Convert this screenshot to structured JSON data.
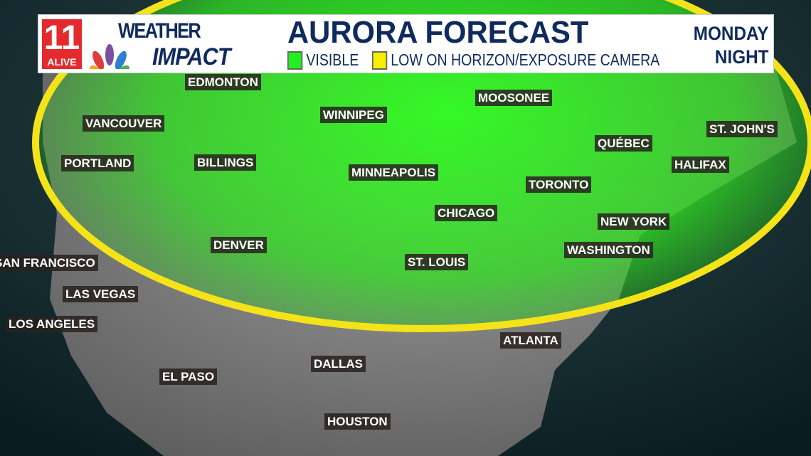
{
  "header": {
    "station_logo": "11 ALIVE",
    "brand_line1": "WEATHER",
    "brand_line2": "IMPACT",
    "title": "AURORA FORECAST",
    "day_line1": "MONDAY",
    "day_line2": "NIGHT"
  },
  "legend": [
    {
      "label": "VISIBLE",
      "color": "#22ee22"
    },
    {
      "label": "LOW ON HORIZON/EXPOSURE CAMERA",
      "color": "#f5ee00"
    }
  ],
  "colors": {
    "visible_zone": "#22ee22",
    "horizon_ring": "#f5e31a",
    "land": "#8a8a8a",
    "header_text": "#0f2a5e"
  },
  "cities": [
    "EDMONTON",
    "VANCOUVER",
    "WINNIPEG",
    "MOOSONEE",
    "ST. JOHN'S",
    "QUÉBEC",
    "PORTLAND",
    "BILLINGS",
    "MINNEAPOLIS",
    "HALIFAX",
    "TORONTO",
    "CHICAGO",
    "NEW YORK",
    "DENVER",
    "WASHINGTON",
    "SAN FRANCISCO",
    "ST. LOUIS",
    "LAS VEGAS",
    "LOS ANGELES",
    "ATLANTA",
    "EL PASO",
    "DALLAS",
    "HOUSTON"
  ]
}
